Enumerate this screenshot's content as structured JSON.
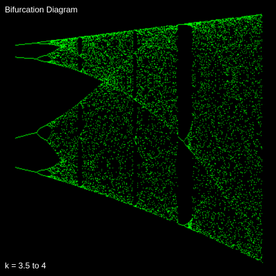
{
  "title": "Bifurcation Diagram",
  "range_label": "k = 3.5 to 4",
  "colors": {
    "background": "#000000",
    "points": "#00ff00",
    "text": "#ffffff"
  },
  "chart_data": {
    "type": "scatter",
    "title": "Bifurcation Diagram",
    "map": "logistic",
    "equation_variable": "k",
    "k_range": [
      3.5,
      4.0
    ],
    "x_range": [
      0.0,
      1.0
    ],
    "axes_visible": false,
    "grid": false,
    "legend": "none",
    "annotations": [
      "k = 3.5 to 4"
    ],
    "series": [
      {
        "color": "#00ff00",
        "period_4_values_at_k_3_5": [
          0.383,
          0.501,
          0.827,
          0.875
        ],
        "notable_windows": [
          {
            "k_start": 3.628,
            "k_end": 3.634,
            "period": 6
          },
          {
            "k_start": 3.7,
            "k_end": 3.708,
            "period": 7
          },
          {
            "k_start": 3.738,
            "k_end": 3.745,
            "period": 5
          },
          {
            "k_start": 3.8284,
            "k_end": 3.857,
            "period": 3
          }
        ]
      }
    ]
  }
}
